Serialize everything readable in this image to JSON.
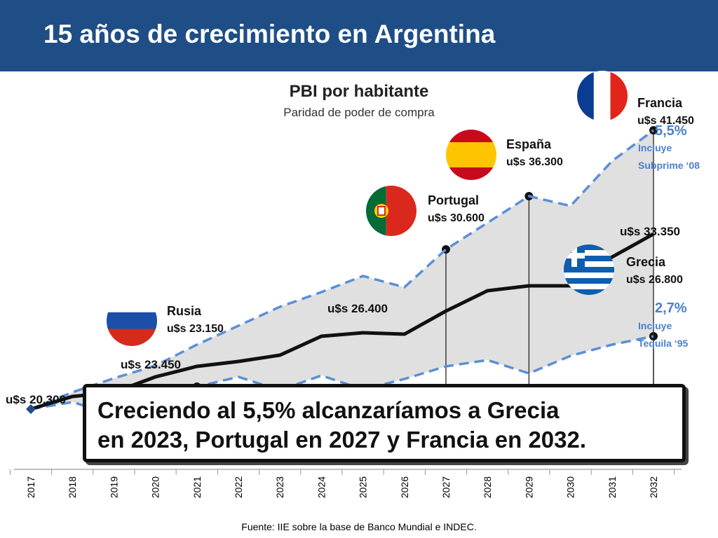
{
  "header": {
    "title": "15 años de crecimiento en Argentina"
  },
  "source": "Fuente: IIE sobre la base de Banco Mundial e INDEC.",
  "callout": {
    "line1": "Creciendo al 5,5% alcanzaríamos a Grecia",
    "line2": "en 2023, Portugal en 2027 y Francia en 2032."
  },
  "colors": {
    "header": "#1f4e86",
    "line": "#111111",
    "bounds": "#5b8fd6",
    "band": "#e0e0e0"
  },
  "chart_data": {
    "type": "line",
    "title": "PBI por habitante",
    "subtitle": "Paridad de poder de compra",
    "x": [
      "2017",
      "2018",
      "2019",
      "2020",
      "2021",
      "2022",
      "2023",
      "2024",
      "2025",
      "2026",
      "2027",
      "2028",
      "2029",
      "2030",
      "2031",
      "2032"
    ],
    "ylim": [
      16000,
      44500
    ],
    "series": [
      {
        "style": "solid",
        "values": [
          20300,
          21200,
          21500,
          22600,
          23350,
          23700,
          24150,
          25500,
          25750,
          25650,
          27300,
          28750,
          29100,
          29100,
          31150,
          32800
        ]
      },
      {
        "style": "dashed-upper",
        "values": [
          20300,
          21500,
          22500,
          23400,
          24900,
          26250,
          27600,
          28650,
          29800,
          29000,
          31700,
          33600,
          35500,
          34800,
          38000,
          40200
        ]
      },
      {
        "style": "dashed-lower",
        "values": [
          20300,
          20800,
          19900,
          20500,
          21900,
          22600,
          21650,
          22700,
          21700,
          22450,
          23350,
          23800,
          22850,
          24100,
          24900,
          25500
        ]
      }
    ],
    "labels": [
      {
        "year": "2017",
        "text": "u$s 20.300"
      },
      {
        "year": "2019",
        "text": "u$s 23.450"
      },
      {
        "year": "2024",
        "text": "u$s 26.400"
      },
      {
        "year": "2031",
        "text": "u$s 33.350"
      }
    ],
    "countries": [
      {
        "name": "Rusia",
        "value": "u$s 23.150",
        "year": "2021"
      },
      {
        "name": "Portugal",
        "value": "u$s 30.600",
        "year": "2027"
      },
      {
        "name": "España",
        "value": "u$s 36.300",
        "year": "2029"
      },
      {
        "name": "Grecia",
        "value": "u$s 26.800",
        "year": "2032"
      },
      {
        "name": "Francia",
        "value": "u$s 41.450",
        "year": "2032"
      }
    ],
    "bound_labels": {
      "upper": {
        "rate": "5,5%",
        "note1": "Incluye",
        "note2": "Subprime ‘08"
      },
      "lower": {
        "rate": "2,7%",
        "note1": "Incluye",
        "note2": "Tequila ‘95"
      }
    }
  }
}
